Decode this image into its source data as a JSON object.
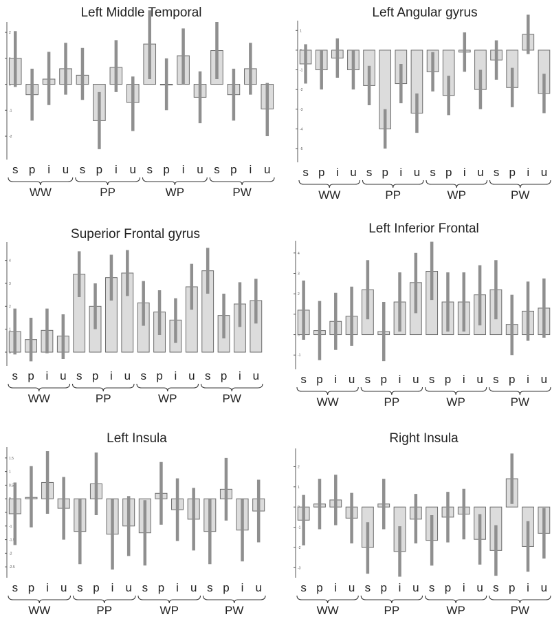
{
  "figure": {
    "colors": {
      "bar_fill": "#dcdcdc",
      "bar_stroke": "#6b6b6b",
      "error_bar": "#8f8f8f",
      "axis": "#555555",
      "text": "#222222"
    }
  },
  "chart_data": [
    {
      "type": "bar",
      "title": "Left Middle Temporal",
      "categories": [
        "s",
        "p",
        "i",
        "u",
        "s",
        "p",
        "i",
        "u",
        "s",
        "p",
        "i",
        "u",
        "s",
        "p",
        "i",
        "u"
      ],
      "groups": [
        "WW",
        "PP",
        "WP",
        "PW"
      ],
      "ytick_labels": [
        "2",
        "1",
        "0",
        "-1",
        "-2"
      ],
      "ylim": [
        -2.9,
        2.4
      ],
      "yticks": [
        2,
        1,
        0,
        -1,
        -2
      ],
      "values": [
        1.0,
        -0.4,
        0.2,
        0.6,
        0.35,
        -1.4,
        0.65,
        -0.7,
        1.55,
        0.0,
        1.1,
        -0.5,
        1.3,
        -0.4,
        0.6,
        -0.95
      ],
      "error_low": [
        -0.1,
        -1.4,
        -0.8,
        -0.4,
        -0.6,
        -2.5,
        -0.3,
        -1.8,
        0.2,
        -1.0,
        0.0,
        -1.5,
        0.2,
        -1.4,
        -0.4,
        -2.0
      ],
      "error_high": [
        2.05,
        0.6,
        1.25,
        1.6,
        1.4,
        -0.3,
        1.7,
        0.3,
        2.85,
        1.0,
        2.15,
        0.5,
        2.4,
        0.6,
        1.6,
        0.05
      ]
    },
    {
      "type": "bar",
      "title": "Left Angular gyrus",
      "categories": [
        "s",
        "p",
        "i",
        "u",
        "s",
        "p",
        "i",
        "u",
        "s",
        "p",
        "i",
        "u",
        "s",
        "p",
        "i",
        "u"
      ],
      "groups": [
        "WW",
        "PP",
        "WP",
        "PW"
      ],
      "ytick_labels": [
        "1",
        "0",
        "-1",
        "-2",
        "-3",
        "-4",
        "-5"
      ],
      "ylim": [
        -5.7,
        1.5
      ],
      "yticks": [
        1,
        0,
        -1,
        -2,
        -3,
        -4,
        -5
      ],
      "values": [
        -0.7,
        -1.0,
        -0.4,
        -1.0,
        -1.8,
        -4.0,
        -1.7,
        -3.2,
        -1.1,
        -2.3,
        -0.1,
        -2.0,
        -0.5,
        -1.9,
        0.8,
        -2.2
      ],
      "error_low": [
        -1.7,
        -2.0,
        -1.4,
        -2.0,
        -2.8,
        -5.0,
        -2.7,
        -4.2,
        -2.1,
        -3.3,
        -1.1,
        -3.0,
        -1.5,
        -2.9,
        -0.2,
        -3.2
      ],
      "error_high": [
        0.3,
        0.0,
        0.6,
        0.0,
        -0.8,
        -3.0,
        -0.7,
        -2.2,
        -0.1,
        -1.3,
        0.9,
        -1.0,
        0.5,
        -0.9,
        1.8,
        -1.2
      ]
    },
    {
      "type": "bar",
      "title": "Superior Frontal gyrus",
      "categories": [
        "s",
        "p",
        "i",
        "u",
        "s",
        "p",
        "i",
        "u",
        "s",
        "p",
        "i",
        "u",
        "s",
        "p",
        "i",
        "u"
      ],
      "groups": [
        "WW",
        "PP",
        "WP",
        "PW"
      ],
      "ytick_labels": [
        "4",
        "3",
        "2",
        "1",
        "0"
      ],
      "ylim": [
        -0.6,
        4.8
      ],
      "yticks": [
        4,
        3,
        2,
        1,
        0
      ],
      "values": [
        0.9,
        0.55,
        0.95,
        0.7,
        3.4,
        2.0,
        3.25,
        3.45,
        2.15,
        1.75,
        1.4,
        2.85,
        3.55,
        1.6,
        2.1,
        2.25
      ],
      "error_low": [
        -0.1,
        -0.4,
        -0.05,
        -0.3,
        2.4,
        1.0,
        2.25,
        2.45,
        1.15,
        0.75,
        0.4,
        1.85,
        2.55,
        0.6,
        1.1,
        1.25
      ],
      "error_high": [
        1.9,
        1.5,
        1.9,
        1.65,
        4.4,
        3.0,
        4.25,
        4.45,
        3.1,
        2.7,
        2.35,
        3.85,
        4.55,
        2.55,
        3.05,
        3.2
      ]
    },
    {
      "type": "bar",
      "title": "Left Inferior Frontal",
      "categories": [
        "s",
        "p",
        "i",
        "u",
        "s",
        "p",
        "i",
        "u",
        "s",
        "p",
        "i",
        "u",
        "s",
        "p",
        "i",
        "u"
      ],
      "groups": [
        "WW",
        "PP",
        "WP",
        "PW"
      ],
      "ytick_labels": [
        "4",
        "3",
        "2",
        "1",
        "0",
        "-1"
      ],
      "ylim": [
        -1.7,
        4.6
      ],
      "yticks": [
        4,
        3,
        2,
        1,
        0,
        -1
      ],
      "values": [
        1.2,
        0.2,
        0.65,
        0.9,
        2.2,
        0.15,
        1.6,
        2.55,
        3.1,
        1.6,
        1.6,
        1.95,
        2.2,
        0.5,
        1.15,
        1.3
      ],
      "error_low": [
        -0.25,
        -1.25,
        -0.75,
        -0.55,
        0.75,
        -1.3,
        0.15,
        1.05,
        1.7,
        0.15,
        0.15,
        0.45,
        0.75,
        -1.0,
        -0.3,
        -0.15
      ],
      "error_high": [
        2.65,
        1.65,
        2.05,
        2.35,
        3.65,
        1.6,
        3.05,
        4.0,
        4.55,
        3.05,
        3.05,
        3.4,
        3.65,
        1.95,
        2.6,
        2.75
      ]
    },
    {
      "type": "bar",
      "title": "Left Insula",
      "categories": [
        "s",
        "p",
        "i",
        "u",
        "s",
        "p",
        "i",
        "u",
        "s",
        "p",
        "i",
        "u",
        "s",
        "p",
        "i",
        "u"
      ],
      "groups": [
        "WW",
        "PP",
        "WP",
        "PW"
      ],
      "ytick_labels": [
        "1.5",
        "1",
        "0.5",
        "0",
        "-0.5",
        "-1",
        "-1.5",
        "-2",
        "-2.5"
      ],
      "ylim": [
        -2.9,
        1.9
      ],
      "yticks": [
        1.5,
        1,
        0.5,
        0,
        -0.5,
        -1,
        -1.5,
        -2,
        -2.5
      ],
      "values": [
        -0.55,
        0.05,
        0.6,
        -0.35,
        -1.2,
        0.55,
        -1.3,
        -1.0,
        -1.25,
        0.2,
        -0.4,
        -0.75,
        -1.2,
        0.35,
        -1.15,
        -0.45
      ],
      "error_low": [
        -1.7,
        -1.05,
        -0.55,
        -1.5,
        -2.4,
        -0.6,
        -2.6,
        -2.1,
        -2.45,
        -0.95,
        -1.55,
        -1.9,
        -2.4,
        -0.8,
        -2.3,
        -1.6
      ],
      "error_high": [
        0.6,
        1.2,
        1.75,
        0.8,
        0.0,
        1.7,
        0.0,
        0.1,
        -0.05,
        1.35,
        0.75,
        0.4,
        0.0,
        1.5,
        0.0,
        0.7
      ]
    },
    {
      "type": "bar",
      "title": "Right Insula",
      "categories": [
        "s",
        "p",
        "i",
        "u",
        "s",
        "p",
        "i",
        "u",
        "s",
        "p",
        "i",
        "u",
        "s",
        "p",
        "i",
        "u"
      ],
      "groups": [
        "WW",
        "PP",
        "WP",
        "PW"
      ],
      "ytick_labels": [
        "2",
        "1",
        "0",
        "-1",
        "-2",
        "-3"
      ],
      "ylim": [
        -3.5,
        2.9
      ],
      "yticks": [
        2,
        1,
        0,
        -1,
        -2,
        -3
      ],
      "values": [
        -0.65,
        0.15,
        0.35,
        -0.55,
        -2.0,
        0.15,
        -2.2,
        -0.6,
        -1.65,
        -0.5,
        -0.35,
        -1.6,
        -2.15,
        1.4,
        -1.95,
        -1.3
      ],
      "error_low": [
        -1.9,
        -1.1,
        -0.9,
        -1.8,
        -3.3,
        -1.1,
        -3.45,
        -1.8,
        -2.9,
        -1.75,
        -1.6,
        -2.85,
        -3.4,
        0.15,
        -3.2,
        -2.55
      ],
      "error_high": [
        0.6,
        1.4,
        1.6,
        0.7,
        -0.75,
        1.4,
        -0.95,
        0.65,
        -0.4,
        0.75,
        0.9,
        -0.35,
        -0.9,
        2.65,
        -0.7,
        -0.05
      ]
    }
  ]
}
